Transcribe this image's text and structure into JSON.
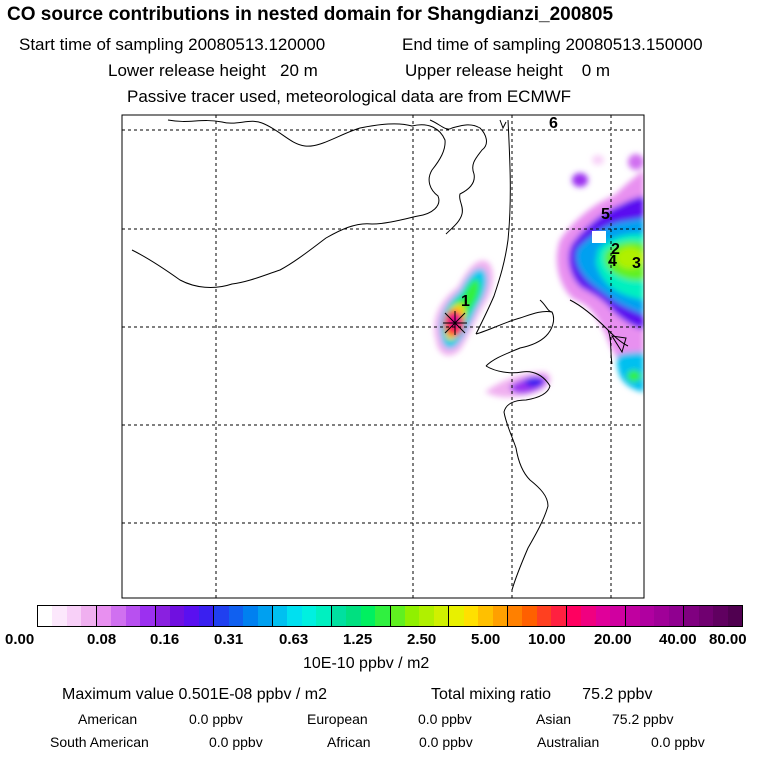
{
  "header": {
    "title": "CO  source contributions in nested domain for Shangdianzi_200805",
    "start_sampling": "Start time of sampling 20080513.120000",
    "end_sampling": "End time of sampling 20080513.150000",
    "lower_release": "Lower release height   20 m",
    "upper_release": "Upper release height    0 m",
    "tracer_note": "Passive tracer used, meteorological data are from ECMWF"
  },
  "map": {
    "receptor_marker": "*",
    "source_labels": [
      "1",
      "2",
      "3",
      "4",
      "5",
      "6"
    ]
  },
  "colorbar": {
    "ticks": [
      "0.00",
      "0.08",
      "0.16",
      "0.31",
      "0.63",
      "1.25",
      "2.50",
      "5.00",
      "10.00",
      "20.00",
      "40.00",
      "80.00"
    ],
    "colors": [
      "#ffffff",
      "#fce8fc",
      "#f8d0f8",
      "#f0b0f0",
      "#e890f0",
      "#d070f0",
      "#b850f0",
      "#9c30f0",
      "#8a20e0",
      "#7010e0",
      "#5a10f0",
      "#3a20f0",
      "#2040f0",
      "#1060f0",
      "#0080f0",
      "#00a0f0",
      "#00c0f0",
      "#00e0f0",
      "#00f0e0",
      "#00f0c0",
      "#00e0a0",
      "#00e080",
      "#00f060",
      "#30f040",
      "#60f020",
      "#90f000",
      "#b0f000",
      "#d0f000",
      "#e8f000",
      "#ffe000",
      "#ffc000",
      "#ffa000",
      "#ff8000",
      "#ff6000",
      "#ff4020",
      "#ff2040",
      "#ff0060",
      "#f00080",
      "#e0009a",
      "#d000a0",
      "#c000a0",
      "#b000a0",
      "#a00098",
      "#900090",
      "#800080",
      "#700070",
      "#600060",
      "#500050"
    ],
    "unit_label": "10E-10 ppbv / m2"
  },
  "summary": {
    "max_value": "Maximum value  0.501E-08 ppbv / m2",
    "total_mixing": "Total mixing ratio       75.2 ppbv"
  },
  "regions": {
    "american_label": "American",
    "american_value": "0.0 ppbv",
    "european_label": "European",
    "european_value": "0.0 ppbv",
    "asian_label": "Asian",
    "asian_value": "75.2 ppbv",
    "south_american_label": "South American",
    "south_american_value": "0.0 ppbv",
    "african_label": "African",
    "african_value": "0.0 ppbv",
    "australian_label": "Australian",
    "australian_value": "0.0 ppbv"
  }
}
